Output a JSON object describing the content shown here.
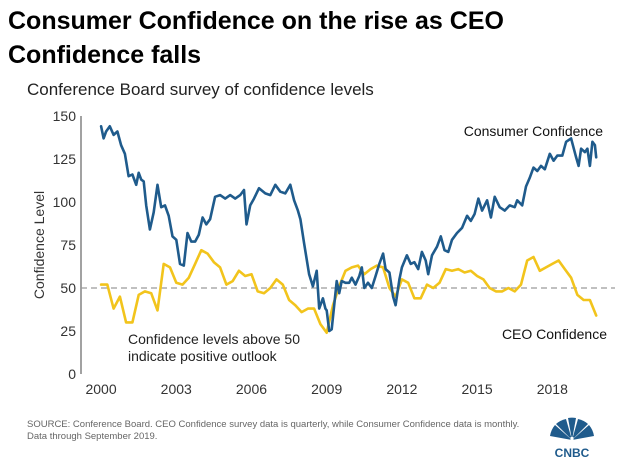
{
  "title": "Consumer Confidence on the rise as CEO Confidence falls",
  "subtitle": "Conference Board survey of confidence levels",
  "footer": "SOURCE: Conference Board. CEO Confidence survey data is quarterly, while Consumer Confidence data is monthly. Data through September 2019.",
  "brand": "CNBC",
  "colors": {
    "consumer": "#1f5b8c",
    "ceo": "#f2c41c",
    "reference": "#9a9a9a",
    "axis": "#444444"
  },
  "chart_data": {
    "type": "line",
    "title": "Consumer Confidence on the rise as CEO Confidence falls",
    "subtitle": "Conference Board survey of confidence levels",
    "xlabel": "",
    "ylabel": "Confidence Level",
    "xlim": [
      1999.2,
      2020.7
    ],
    "ylim": [
      0,
      150
    ],
    "xticks": [
      2000,
      2003,
      2006,
      2009,
      2012,
      2015,
      2018
    ],
    "yticks": [
      0,
      25,
      50,
      75,
      100,
      125,
      150
    ],
    "reference_line": {
      "y": 50,
      "style": "dashed"
    },
    "annotation": {
      "line1": "Confidence levels above 50",
      "line2": "indicate positive outlook"
    },
    "series": [
      {
        "name": "Consumer Confidence",
        "points": [
          [
            2000.0,
            144
          ],
          [
            2000.1,
            137
          ],
          [
            2000.2,
            141
          ],
          [
            2000.35,
            144
          ],
          [
            2000.5,
            139
          ],
          [
            2000.65,
            141
          ],
          [
            2000.8,
            133
          ],
          [
            2000.95,
            128
          ],
          [
            2001.1,
            115
          ],
          [
            2001.25,
            116
          ],
          [
            2001.4,
            110
          ],
          [
            2001.5,
            117
          ],
          [
            2001.6,
            113
          ],
          [
            2001.7,
            112
          ],
          [
            2001.8,
            98
          ],
          [
            2001.95,
            84
          ],
          [
            2002.1,
            94
          ],
          [
            2002.25,
            110
          ],
          [
            2002.4,
            97
          ],
          [
            2002.55,
            98
          ],
          [
            2002.7,
            92
          ],
          [
            2002.85,
            80
          ],
          [
            2003.0,
            78
          ],
          [
            2003.15,
            64
          ],
          [
            2003.3,
            63
          ],
          [
            2003.45,
            82
          ],
          [
            2003.6,
            77
          ],
          [
            2003.75,
            77
          ],
          [
            2003.9,
            81
          ],
          [
            2004.05,
            91
          ],
          [
            2004.2,
            87
          ],
          [
            2004.35,
            90
          ],
          [
            2004.55,
            103
          ],
          [
            2004.75,
            104
          ],
          [
            2004.95,
            102
          ],
          [
            2005.15,
            104
          ],
          [
            2005.35,
            102
          ],
          [
            2005.55,
            104
          ],
          [
            2005.7,
            107
          ],
          [
            2005.8,
            87
          ],
          [
            2005.95,
            98
          ],
          [
            2006.1,
            102
          ],
          [
            2006.3,
            108
          ],
          [
            2006.55,
            105
          ],
          [
            2006.75,
            104
          ],
          [
            2006.95,
            110
          ],
          [
            2007.15,
            106
          ],
          [
            2007.35,
            105
          ],
          [
            2007.55,
            110
          ],
          [
            2007.7,
            101
          ],
          [
            2007.85,
            95
          ],
          [
            2007.95,
            90
          ],
          [
            2008.1,
            76
          ],
          [
            2008.3,
            58
          ],
          [
            2008.45,
            51
          ],
          [
            2008.6,
            60
          ],
          [
            2008.7,
            38
          ],
          [
            2008.85,
            44
          ],
          [
            2008.95,
            38
          ],
          [
            2009.0,
            37
          ],
          [
            2009.1,
            25
          ],
          [
            2009.2,
            26
          ],
          [
            2009.3,
            40
          ],
          [
            2009.4,
            54
          ],
          [
            2009.5,
            47
          ],
          [
            2009.6,
            54
          ],
          [
            2009.75,
            53
          ],
          [
            2009.9,
            53
          ],
          [
            2010.0,
            56
          ],
          [
            2010.15,
            52
          ],
          [
            2010.3,
            57
          ],
          [
            2010.4,
            62
          ],
          [
            2010.5,
            50
          ],
          [
            2010.65,
            53
          ],
          [
            2010.8,
            50
          ],
          [
            2010.95,
            57
          ],
          [
            2011.1,
            64
          ],
          [
            2011.25,
            70
          ],
          [
            2011.35,
            61
          ],
          [
            2011.5,
            59
          ],
          [
            2011.65,
            45
          ],
          [
            2011.75,
            40
          ],
          [
            2011.9,
            55
          ],
          [
            2012.0,
            62
          ],
          [
            2012.2,
            69
          ],
          [
            2012.35,
            64
          ],
          [
            2012.5,
            65
          ],
          [
            2012.65,
            61
          ],
          [
            2012.8,
            71
          ],
          [
            2012.95,
            66
          ],
          [
            2013.05,
            58
          ],
          [
            2013.2,
            69
          ],
          [
            2013.4,
            74
          ],
          [
            2013.55,
            80
          ],
          [
            2013.7,
            72
          ],
          [
            2013.85,
            71
          ],
          [
            2014.0,
            78
          ],
          [
            2014.2,
            82
          ],
          [
            2014.4,
            85
          ],
          [
            2014.6,
            92
          ],
          [
            2014.75,
            89
          ],
          [
            2014.9,
            93
          ],
          [
            2015.05,
            102
          ],
          [
            2015.2,
            95
          ],
          [
            2015.4,
            101
          ],
          [
            2015.55,
            91
          ],
          [
            2015.7,
            103
          ],
          [
            2015.9,
            97
          ],
          [
            2016.1,
            95
          ],
          [
            2016.3,
            98
          ],
          [
            2016.5,
            97
          ],
          [
            2016.6,
            101
          ],
          [
            2016.8,
            98
          ],
          [
            2016.95,
            109
          ],
          [
            2017.1,
            114
          ],
          [
            2017.25,
            120
          ],
          [
            2017.4,
            118
          ],
          [
            2017.55,
            121
          ],
          [
            2017.7,
            119
          ],
          [
            2017.9,
            128
          ],
          [
            2018.05,
            124
          ],
          [
            2018.2,
            127
          ],
          [
            2018.4,
            127
          ],
          [
            2018.55,
            135
          ],
          [
            2018.75,
            137
          ],
          [
            2018.95,
            126
          ],
          [
            2019.05,
            121
          ],
          [
            2019.15,
            131
          ],
          [
            2019.3,
            129
          ],
          [
            2019.4,
            131
          ],
          [
            2019.5,
            121
          ],
          [
            2019.6,
            135
          ],
          [
            2019.7,
            133
          ],
          [
            2019.75,
            126
          ]
        ]
      },
      {
        "name": "CEO Confidence",
        "points": [
          [
            2000.0,
            52
          ],
          [
            2000.25,
            52
          ],
          [
            2000.5,
            38
          ],
          [
            2000.75,
            45
          ],
          [
            2001.0,
            30
          ],
          [
            2001.25,
            30
          ],
          [
            2001.5,
            46
          ],
          [
            2001.75,
            48
          ],
          [
            2002.0,
            47
          ],
          [
            2002.25,
            37
          ],
          [
            2002.5,
            64
          ],
          [
            2002.75,
            62
          ],
          [
            2003.0,
            53
          ],
          [
            2003.25,
            52
          ],
          [
            2003.5,
            56
          ],
          [
            2003.75,
            64
          ],
          [
            2004.0,
            72
          ],
          [
            2004.25,
            70
          ],
          [
            2004.5,
            65
          ],
          [
            2004.75,
            62
          ],
          [
            2005.0,
            52
          ],
          [
            2005.25,
            54
          ],
          [
            2005.5,
            60
          ],
          [
            2005.75,
            57
          ],
          [
            2006.0,
            58
          ],
          [
            2006.25,
            48
          ],
          [
            2006.5,
            47
          ],
          [
            2006.75,
            50
          ],
          [
            2007.0,
            55
          ],
          [
            2007.25,
            52
          ],
          [
            2007.5,
            43
          ],
          [
            2007.75,
            40
          ],
          [
            2008.0,
            36
          ],
          [
            2008.25,
            38
          ],
          [
            2008.5,
            38
          ],
          [
            2008.75,
            29
          ],
          [
            2009.0,
            24
          ],
          [
            2009.25,
            40
          ],
          [
            2009.5,
            51
          ],
          [
            2009.75,
            60
          ],
          [
            2010.0,
            62
          ],
          [
            2010.25,
            63
          ],
          [
            2010.5,
            58
          ],
          [
            2010.75,
            61
          ],
          [
            2011.0,
            63
          ],
          [
            2011.25,
            62
          ],
          [
            2011.5,
            50
          ],
          [
            2011.75,
            45
          ],
          [
            2012.0,
            55
          ],
          [
            2012.25,
            53
          ],
          [
            2012.5,
            44
          ],
          [
            2012.75,
            44
          ],
          [
            2013.0,
            52
          ],
          [
            2013.25,
            50
          ],
          [
            2013.5,
            53
          ],
          [
            2013.75,
            61
          ],
          [
            2014.0,
            60
          ],
          [
            2014.25,
            61
          ],
          [
            2014.5,
            59
          ],
          [
            2014.75,
            60
          ],
          [
            2015.0,
            57
          ],
          [
            2015.25,
            55
          ],
          [
            2015.5,
            50
          ],
          [
            2015.75,
            48
          ],
          [
            2016.0,
            48
          ],
          [
            2016.25,
            50
          ],
          [
            2016.5,
            48
          ],
          [
            2016.75,
            52
          ],
          [
            2017.0,
            66
          ],
          [
            2017.25,
            68
          ],
          [
            2017.5,
            60
          ],
          [
            2017.75,
            62
          ],
          [
            2018.0,
            64
          ],
          [
            2018.25,
            66
          ],
          [
            2018.5,
            61
          ],
          [
            2018.75,
            56
          ],
          [
            2019.0,
            46
          ],
          [
            2019.25,
            43
          ],
          [
            2019.5,
            43
          ],
          [
            2019.75,
            34
          ]
        ]
      }
    ]
  }
}
